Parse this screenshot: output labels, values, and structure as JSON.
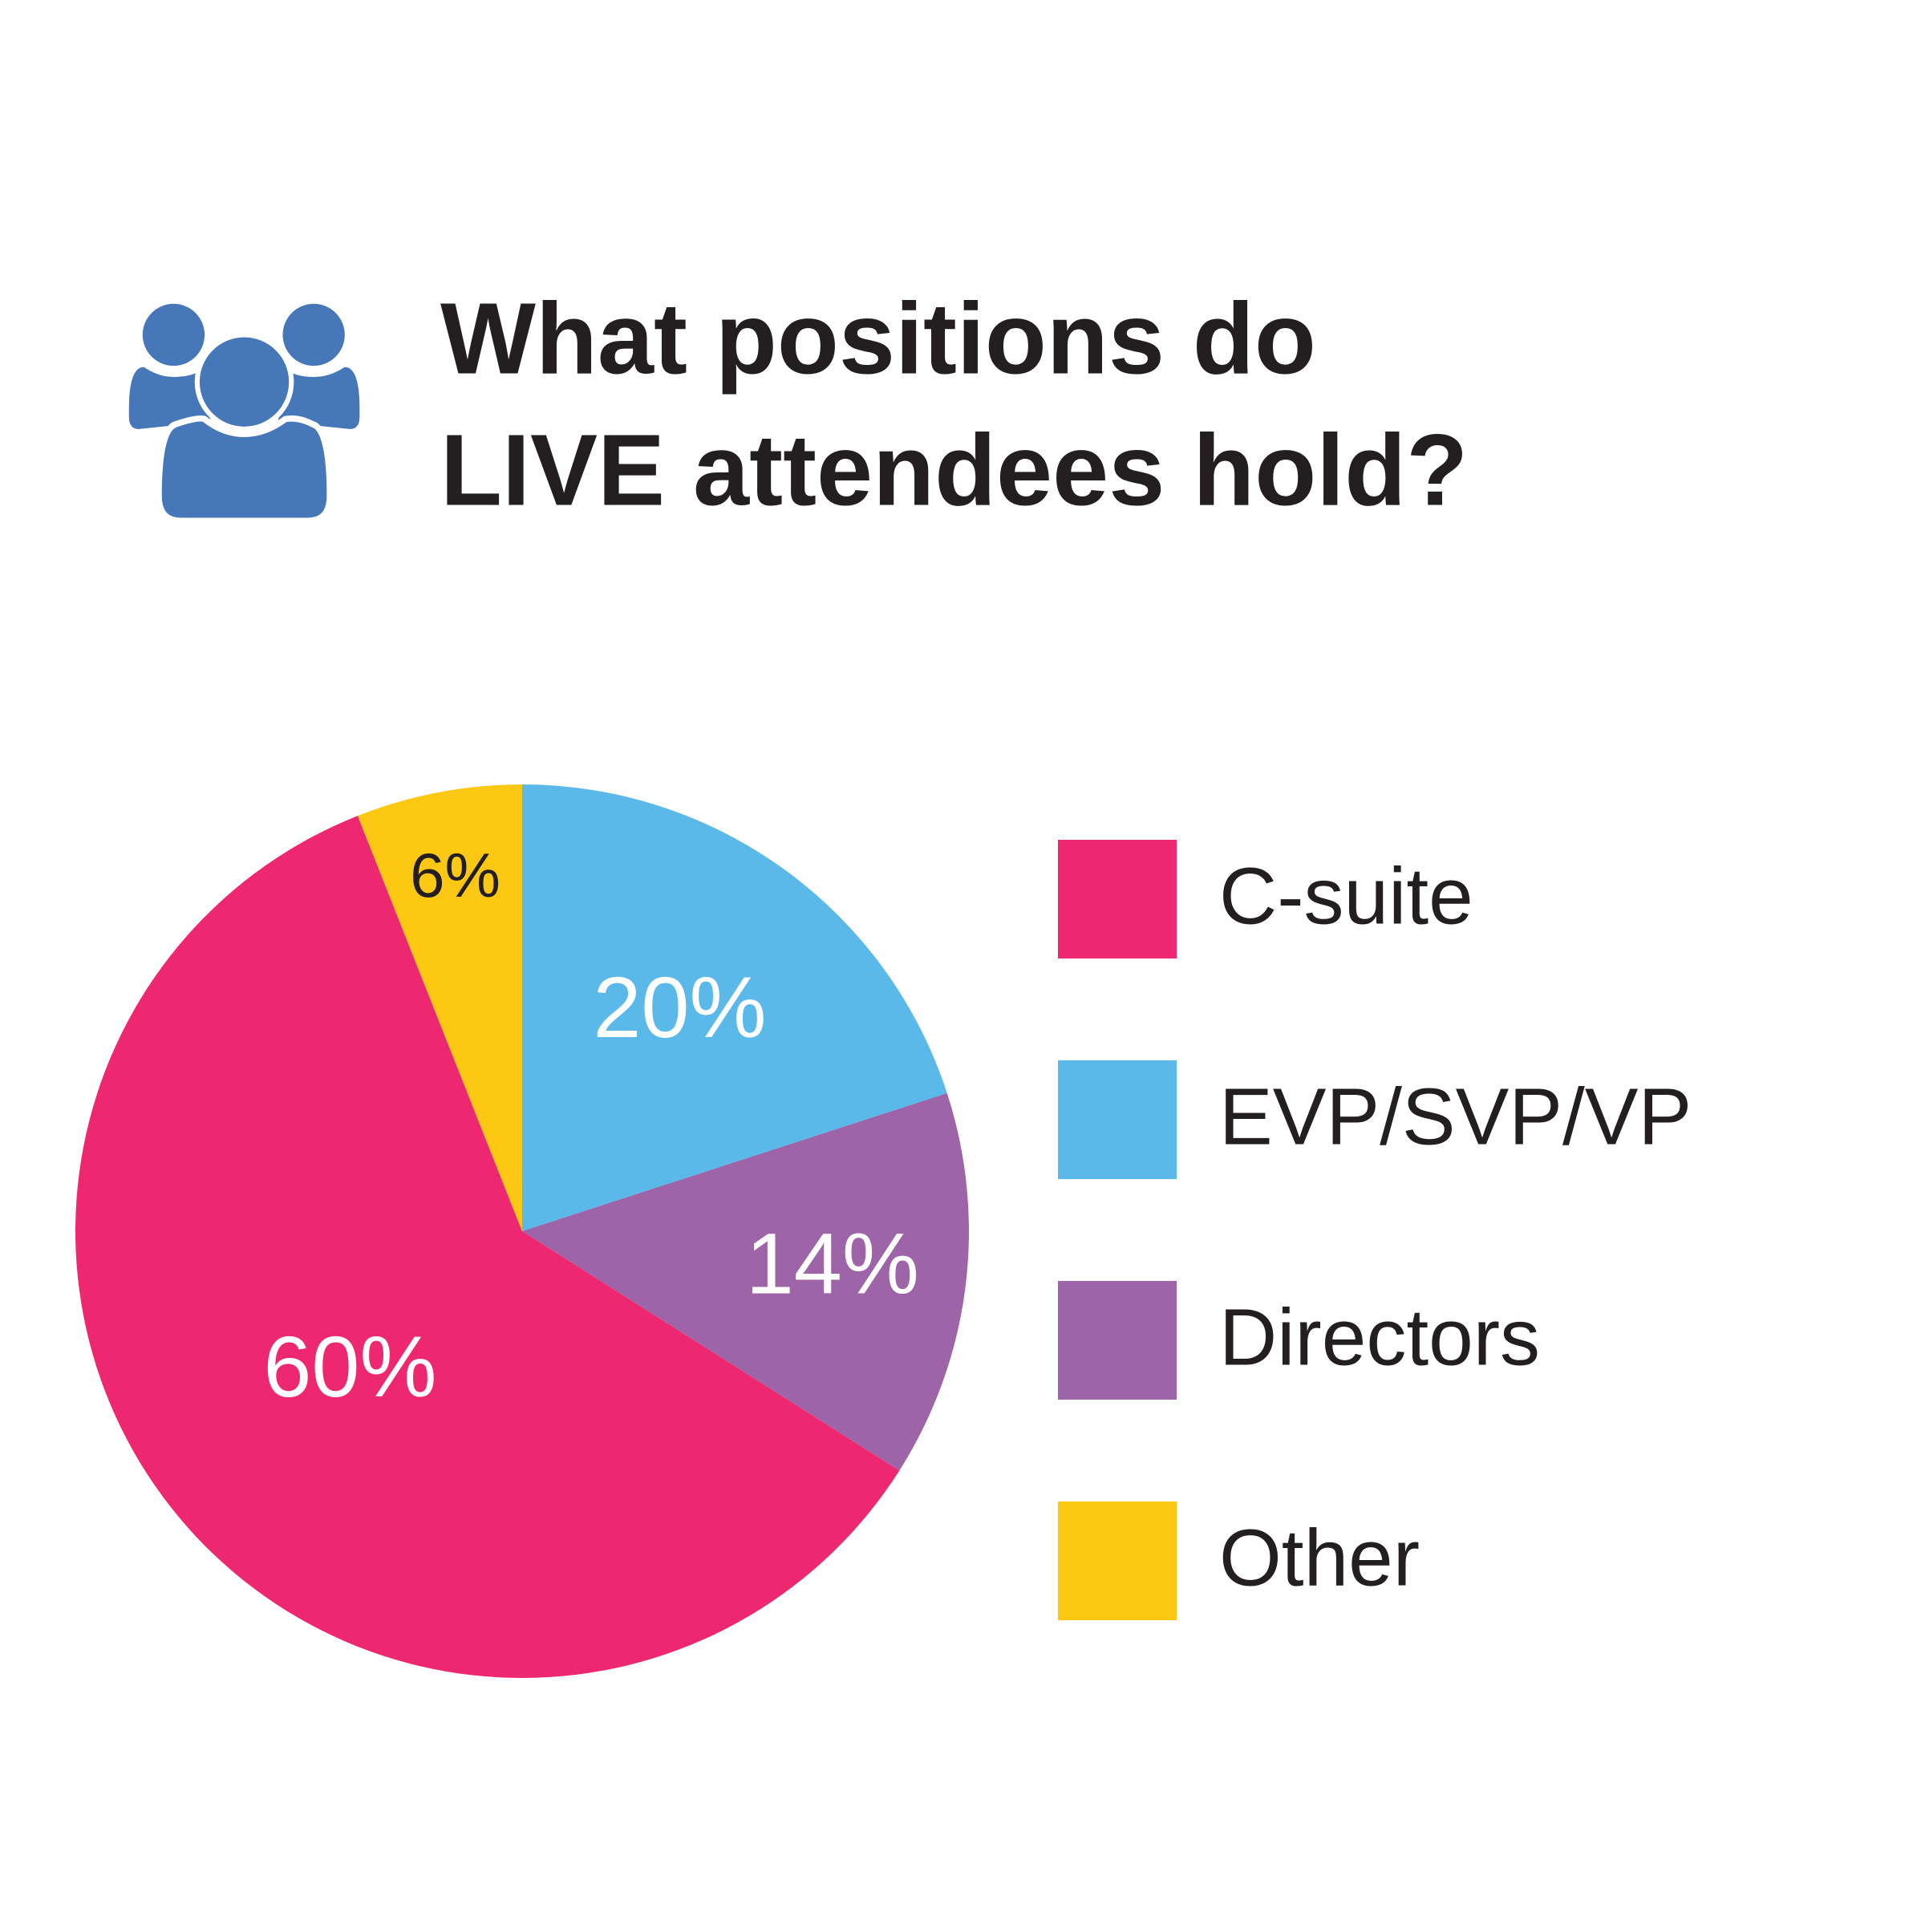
{
  "chart_data": {
    "type": "pie",
    "title": [
      "What positions do",
      "LIVE attendees hold?"
    ],
    "categories": [
      "C-suite",
      "EVP/SVP/VP",
      "Directors",
      "Other"
    ],
    "values": [
      60,
      20,
      14,
      6
    ],
    "value_labels": [
      "60%",
      "20%",
      "14%",
      "6%"
    ],
    "colors": [
      "#ee2870",
      "#5bb9ea",
      "#9d64a8",
      "#fcc813"
    ],
    "legend": "right"
  }
}
